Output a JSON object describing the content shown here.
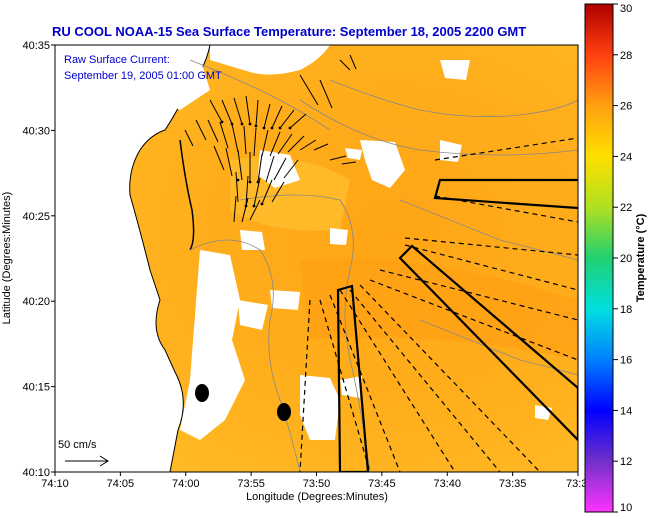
{
  "chart_data": {
    "type": "heatmap",
    "title": "RU COOL  NOAA-15  Sea Surface Temperature:  September 18, 2005 2200 GMT",
    "annotation_line1": "Raw Surface Current:",
    "annotation_line2": "September 19, 2005 01:00 GMT",
    "xlabel": "Longitude (Degrees:Minutes)",
    "ylabel": "Latitude (Degrees:Minutes)",
    "x_ticks": [
      "74:10",
      "74:05",
      "74:00",
      "73:55",
      "73:50",
      "73:45",
      "73:40",
      "73:35",
      "73:3"
    ],
    "y_ticks": [
      "40:35",
      "40:30",
      "40:25",
      "40:20",
      "40:15",
      "40:10"
    ],
    "colorbar": {
      "label": "Temperature (°C)",
      "min": 10,
      "max": 30,
      "ticks": [
        "10",
        "12",
        "14",
        "16",
        "18",
        "20",
        "22",
        "24",
        "26",
        "28",
        "30"
      ]
    },
    "scale_label": "50 cm/s",
    "typical_sst_c": 25
  },
  "colors": {
    "title": "#0000cc",
    "sst_main": "#ffae1c",
    "land": "#ffffff",
    "cloud": "#ffffff"
  }
}
